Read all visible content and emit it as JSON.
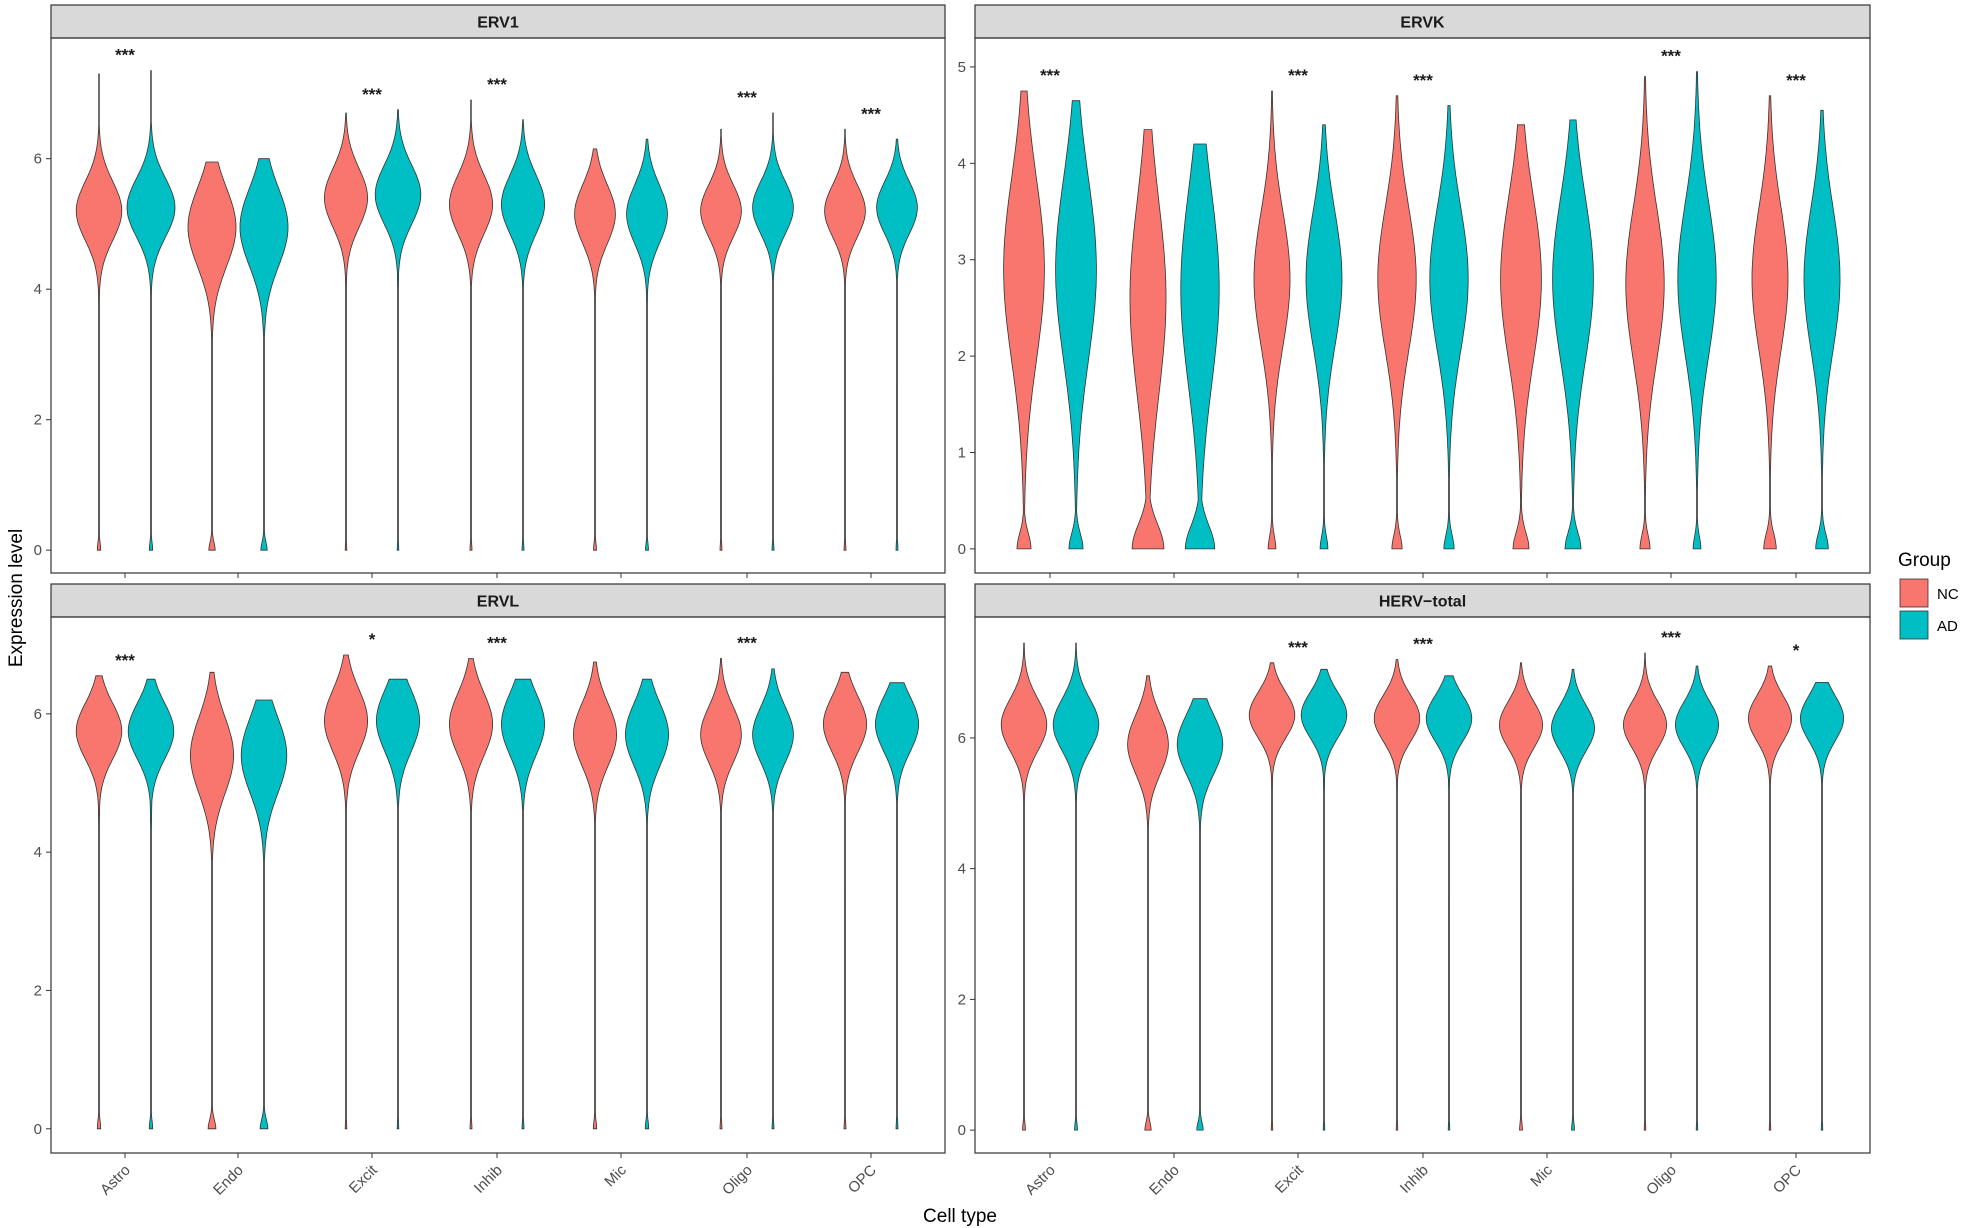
{
  "chart_data": {
    "type": "violin",
    "xlabel": "Cell type",
    "ylabel": "Expression level",
    "categories": [
      "Astro",
      "Endo",
      "Excit",
      "Inhib",
      "Mic",
      "Oligo",
      "OPC"
    ],
    "legend": {
      "title": "Group",
      "position": "right",
      "entries": [
        {
          "name": "NC",
          "color": "#F8766D"
        },
        {
          "name": "AD",
          "color": "#00BFC4"
        }
      ]
    },
    "panels": [
      {
        "title": "ERV1",
        "ylim": [
          -0.35,
          7.85
        ],
        "yticks": [
          0,
          2,
          4,
          6
        ],
        "significance": [
          "***",
          "",
          "***",
          "***",
          "",
          "***",
          "***"
        ],
        "violins": [
          {
            "category": "Astro",
            "group": "NC",
            "mode": 5.2,
            "width": 0.95,
            "spread": 0.45,
            "max": 7.3,
            "lowTail": 3.8,
            "zeroBlob": 0.06
          },
          {
            "category": "Astro",
            "group": "AD",
            "mode": 5.25,
            "width": 1.0,
            "spread": 0.45,
            "max": 7.35,
            "lowTail": 3.9,
            "zeroBlob": 0.06
          },
          {
            "category": "Endo",
            "group": "NC",
            "mode": 4.95,
            "width": 1.0,
            "spread": 0.6,
            "max": 5.95,
            "lowTail": 3.3,
            "zeroBlob": 0.12
          },
          {
            "category": "Endo",
            "group": "AD",
            "mode": 4.95,
            "width": 1.0,
            "spread": 0.6,
            "max": 6.0,
            "lowTail": 3.5,
            "zeroBlob": 0.12
          },
          {
            "category": "Excit",
            "group": "NC",
            "mode": 5.4,
            "width": 0.9,
            "spread": 0.45,
            "max": 6.7,
            "lowTail": 4.0,
            "zeroBlob": 0.02
          },
          {
            "category": "Excit",
            "group": "AD",
            "mode": 5.45,
            "width": 0.95,
            "spread": 0.45,
            "max": 6.75,
            "lowTail": 4.0,
            "zeroBlob": 0.02
          },
          {
            "category": "Inhib",
            "group": "NC",
            "mode": 5.3,
            "width": 0.9,
            "spread": 0.45,
            "max": 6.9,
            "lowTail": 4.2,
            "zeroBlob": 0.03
          },
          {
            "category": "Inhib",
            "group": "AD",
            "mode": 5.3,
            "width": 0.9,
            "spread": 0.45,
            "max": 6.6,
            "lowTail": 4.2,
            "zeroBlob": 0.03
          },
          {
            "category": "Mic",
            "group": "NC",
            "mode": 5.15,
            "width": 0.85,
            "spread": 0.45,
            "max": 6.15,
            "lowTail": 4.0,
            "zeroBlob": 0.05
          },
          {
            "category": "Mic",
            "group": "AD",
            "mode": 5.15,
            "width": 0.85,
            "spread": 0.45,
            "max": 6.3,
            "lowTail": 3.8,
            "zeroBlob": 0.05
          },
          {
            "category": "Oligo",
            "group": "NC",
            "mode": 5.2,
            "width": 0.85,
            "spread": 0.4,
            "max": 6.45,
            "lowTail": 4.2,
            "zeroBlob": 0.03
          },
          {
            "category": "Oligo",
            "group": "AD",
            "mode": 5.25,
            "width": 0.85,
            "spread": 0.4,
            "max": 6.7,
            "lowTail": 4.2,
            "zeroBlob": 0.03
          },
          {
            "category": "OPC",
            "group": "NC",
            "mode": 5.2,
            "width": 0.85,
            "spread": 0.4,
            "max": 6.45,
            "lowTail": 4.2,
            "zeroBlob": 0.03
          },
          {
            "category": "OPC",
            "group": "AD",
            "mode": 5.25,
            "width": 0.85,
            "spread": 0.4,
            "max": 6.3,
            "lowTail": 4.2,
            "zeroBlob": 0.03
          }
        ]
      },
      {
        "title": "ERVK",
        "ylim": [
          -0.25,
          5.3
        ],
        "yticks": [
          0,
          1,
          2,
          3,
          4,
          5
        ],
        "significance": [
          "***",
          "",
          "***",
          "***",
          "",
          "***",
          "***"
        ],
        "violins": [
          {
            "category": "Astro",
            "group": "NC",
            "mode": 2.9,
            "width": 0.85,
            "spread": 0.95,
            "max": 4.75,
            "lowTail": 0.7,
            "zeroBlob": 0.28
          },
          {
            "category": "Astro",
            "group": "AD",
            "mode": 2.9,
            "width": 0.85,
            "spread": 0.95,
            "max": 4.65,
            "lowTail": 0.7,
            "zeroBlob": 0.28
          },
          {
            "category": "Endo",
            "group": "NC",
            "mode": 2.6,
            "width": 0.75,
            "spread": 1.0,
            "max": 4.35,
            "lowTail": 0.3,
            "zeroBlob": 0.65
          },
          {
            "category": "Endo",
            "group": "AD",
            "mode": 2.7,
            "width": 0.8,
            "spread": 1.0,
            "max": 4.2,
            "lowTail": 0.3,
            "zeroBlob": 0.6
          },
          {
            "category": "Excit",
            "group": "NC",
            "mode": 2.8,
            "width": 0.75,
            "spread": 0.7,
            "max": 4.75,
            "lowTail": 1.0,
            "zeroBlob": 0.15
          },
          {
            "category": "Excit",
            "group": "AD",
            "mode": 2.8,
            "width": 0.75,
            "spread": 0.7,
            "max": 4.4,
            "lowTail": 1.0,
            "zeroBlob": 0.15
          },
          {
            "category": "Inhib",
            "group": "NC",
            "mode": 2.8,
            "width": 0.8,
            "spread": 0.75,
            "max": 4.7,
            "lowTail": 0.9,
            "zeroBlob": 0.2
          },
          {
            "category": "Inhib",
            "group": "AD",
            "mode": 2.8,
            "width": 0.8,
            "spread": 0.75,
            "max": 4.6,
            "lowTail": 0.9,
            "zeroBlob": 0.2
          },
          {
            "category": "Mic",
            "group": "NC",
            "mode": 2.8,
            "width": 0.85,
            "spread": 0.85,
            "max": 4.4,
            "lowTail": 0.8,
            "zeroBlob": 0.32
          },
          {
            "category": "Mic",
            "group": "AD",
            "mode": 2.8,
            "width": 0.85,
            "spread": 0.85,
            "max": 4.45,
            "lowTail": 0.8,
            "zeroBlob": 0.32
          },
          {
            "category": "Oligo",
            "group": "NC",
            "mode": 2.75,
            "width": 0.8,
            "spread": 0.8,
            "max": 4.9,
            "lowTail": 0.8,
            "zeroBlob": 0.2
          },
          {
            "category": "Oligo",
            "group": "AD",
            "mode": 2.8,
            "width": 0.8,
            "spread": 0.8,
            "max": 4.95,
            "lowTail": 0.8,
            "zeroBlob": 0.15
          },
          {
            "category": "OPC",
            "group": "NC",
            "mode": 2.8,
            "width": 0.75,
            "spread": 0.75,
            "max": 4.7,
            "lowTail": 1.0,
            "zeroBlob": 0.25
          },
          {
            "category": "OPC",
            "group": "AD",
            "mode": 2.8,
            "width": 0.75,
            "spread": 0.75,
            "max": 4.55,
            "lowTail": 1.0,
            "zeroBlob": 0.25
          }
        ]
      },
      {
        "title": "ERVL",
        "ylim": [
          -0.35,
          7.4
        ],
        "yticks": [
          0,
          2,
          4,
          6
        ],
        "significance": [
          "***",
          "",
          "*",
          "***",
          "",
          "***",
          ""
        ],
        "violins": [
          {
            "category": "Astro",
            "group": "NC",
            "mode": 5.75,
            "width": 0.95,
            "spread": 0.4,
            "max": 6.55,
            "lowTail": 4.4,
            "zeroBlob": 0.06
          },
          {
            "category": "Astro",
            "group": "AD",
            "mode": 5.75,
            "width": 0.95,
            "spread": 0.4,
            "max": 6.5,
            "lowTail": 4.3,
            "zeroBlob": 0.06
          },
          {
            "category": "Endo",
            "group": "NC",
            "mode": 5.4,
            "width": 0.9,
            "spread": 0.55,
            "max": 6.6,
            "lowTail": 4.1,
            "zeroBlob": 0.15
          },
          {
            "category": "Endo",
            "group": "AD",
            "mode": 5.4,
            "width": 0.95,
            "spread": 0.55,
            "max": 6.2,
            "lowTail": 4.2,
            "zeroBlob": 0.15
          },
          {
            "category": "Excit",
            "group": "NC",
            "mode": 5.9,
            "width": 0.9,
            "spread": 0.45,
            "max": 6.85,
            "lowTail": 4.8,
            "zeroBlob": 0.02
          },
          {
            "category": "Excit",
            "group": "AD",
            "mode": 5.9,
            "width": 0.9,
            "spread": 0.45,
            "max": 6.5,
            "lowTail": 4.8,
            "zeroBlob": 0.02
          },
          {
            "category": "Inhib",
            "group": "NC",
            "mode": 5.85,
            "width": 0.9,
            "spread": 0.45,
            "max": 6.8,
            "lowTail": 4.8,
            "zeroBlob": 0.03
          },
          {
            "category": "Inhib",
            "group": "AD",
            "mode": 5.85,
            "width": 0.9,
            "spread": 0.45,
            "max": 6.5,
            "lowTail": 4.8,
            "zeroBlob": 0.03
          },
          {
            "category": "Mic",
            "group": "NC",
            "mode": 5.7,
            "width": 0.9,
            "spread": 0.45,
            "max": 6.75,
            "lowTail": 4.7,
            "zeroBlob": 0.06
          },
          {
            "category": "Mic",
            "group": "AD",
            "mode": 5.7,
            "width": 0.9,
            "spread": 0.45,
            "max": 6.5,
            "lowTail": 4.5,
            "zeroBlob": 0.06
          },
          {
            "category": "Oligo",
            "group": "NC",
            "mode": 5.7,
            "width": 0.85,
            "spread": 0.4,
            "max": 6.8,
            "lowTail": 4.8,
            "zeroBlob": 0.03
          },
          {
            "category": "Oligo",
            "group": "AD",
            "mode": 5.7,
            "width": 0.85,
            "spread": 0.4,
            "max": 6.65,
            "lowTail": 4.8,
            "zeroBlob": 0.03
          },
          {
            "category": "OPC",
            "group": "NC",
            "mode": 5.85,
            "width": 0.9,
            "spread": 0.4,
            "max": 6.6,
            "lowTail": 5.0,
            "zeroBlob": 0.03
          },
          {
            "category": "OPC",
            "group": "AD",
            "mode": 5.85,
            "width": 0.9,
            "spread": 0.4,
            "max": 6.45,
            "lowTail": 5.0,
            "zeroBlob": 0.03
          }
        ]
      },
      {
        "title": "HERV−total",
        "ylim": [
          -0.35,
          7.85
        ],
        "yticks": [
          0,
          2,
          4,
          6
        ],
        "significance": [
          "",
          "",
          "***",
          "***",
          "",
          "***",
          "*"
        ],
        "violins": [
          {
            "category": "Astro",
            "group": "NC",
            "mode": 6.2,
            "width": 0.95,
            "spread": 0.4,
            "max": 7.45,
            "lowTail": 5.0,
            "zeroBlob": 0.05
          },
          {
            "category": "Astro",
            "group": "AD",
            "mode": 6.2,
            "width": 0.95,
            "spread": 0.4,
            "max": 7.45,
            "lowTail": 5.0,
            "zeroBlob": 0.05
          },
          {
            "category": "Endo",
            "group": "NC",
            "mode": 5.9,
            "width": 0.85,
            "spread": 0.45,
            "max": 6.95,
            "lowTail": 4.6,
            "zeroBlob": 0.12
          },
          {
            "category": "Endo",
            "group": "AD",
            "mode": 5.9,
            "width": 0.95,
            "spread": 0.45,
            "max": 6.6,
            "lowTail": 4.6,
            "zeroBlob": 0.12
          },
          {
            "category": "Excit",
            "group": "NC",
            "mode": 6.35,
            "width": 0.95,
            "spread": 0.35,
            "max": 7.15,
            "lowTail": 5.2,
            "zeroBlob": 0.02
          },
          {
            "category": "Excit",
            "group": "AD",
            "mode": 6.35,
            "width": 0.95,
            "spread": 0.35,
            "max": 7.05,
            "lowTail": 5.2,
            "zeroBlob": 0.02
          },
          {
            "category": "Inhib",
            "group": "NC",
            "mode": 6.3,
            "width": 0.95,
            "spread": 0.35,
            "max": 7.2,
            "lowTail": 5.2,
            "zeroBlob": 0.02
          },
          {
            "category": "Inhib",
            "group": "AD",
            "mode": 6.3,
            "width": 0.95,
            "spread": 0.35,
            "max": 6.95,
            "lowTail": 5.2,
            "zeroBlob": 0.02
          },
          {
            "category": "Mic",
            "group": "NC",
            "mode": 6.2,
            "width": 0.9,
            "spread": 0.35,
            "max": 7.15,
            "lowTail": 5.2,
            "zeroBlob": 0.05
          },
          {
            "category": "Mic",
            "group": "AD",
            "mode": 6.15,
            "width": 0.9,
            "spread": 0.35,
            "max": 7.05,
            "lowTail": 5.2,
            "zeroBlob": 0.05
          },
          {
            "category": "Oligo",
            "group": "NC",
            "mode": 6.2,
            "width": 0.9,
            "spread": 0.35,
            "max": 7.3,
            "lowTail": 5.3,
            "zeroBlob": 0.02
          },
          {
            "category": "Oligo",
            "group": "AD",
            "mode": 6.2,
            "width": 0.9,
            "spread": 0.35,
            "max": 7.1,
            "lowTail": 5.3,
            "zeroBlob": 0.02
          },
          {
            "category": "OPC",
            "group": "NC",
            "mode": 6.3,
            "width": 0.9,
            "spread": 0.35,
            "max": 7.1,
            "lowTail": 5.3,
            "zeroBlob": 0.02
          },
          {
            "category": "OPC",
            "group": "AD",
            "mode": 6.3,
            "width": 0.9,
            "spread": 0.35,
            "max": 6.85,
            "lowTail": 5.3,
            "zeroBlob": 0.02
          }
        ]
      }
    ]
  }
}
